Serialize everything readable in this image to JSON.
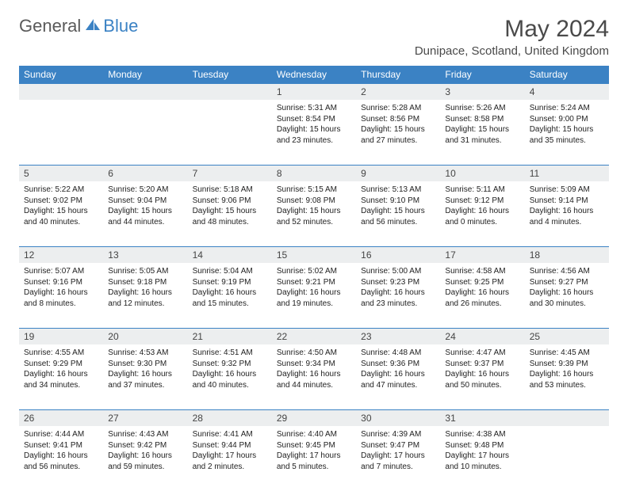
{
  "brand": {
    "part1": "General",
    "part2": "Blue"
  },
  "title": "May 2024",
  "location": "Dunipace, Scotland, United Kingdom",
  "colors": {
    "accent": "#3b82c4",
    "headerText": "#ffffff",
    "dayNumBg": "#eceeef",
    "bodyText": "#222222",
    "titleText": "#4a4a4a"
  },
  "dayNames": [
    "Sunday",
    "Monday",
    "Tuesday",
    "Wednesday",
    "Thursday",
    "Friday",
    "Saturday"
  ],
  "weeks": [
    [
      {
        "num": "",
        "sunrise": "",
        "sunset": "",
        "daylight": ""
      },
      {
        "num": "",
        "sunrise": "",
        "sunset": "",
        "daylight": ""
      },
      {
        "num": "",
        "sunrise": "",
        "sunset": "",
        "daylight": ""
      },
      {
        "num": "1",
        "sunrise": "Sunrise: 5:31 AM",
        "sunset": "Sunset: 8:54 PM",
        "daylight": "Daylight: 15 hours and 23 minutes."
      },
      {
        "num": "2",
        "sunrise": "Sunrise: 5:28 AM",
        "sunset": "Sunset: 8:56 PM",
        "daylight": "Daylight: 15 hours and 27 minutes."
      },
      {
        "num": "3",
        "sunrise": "Sunrise: 5:26 AM",
        "sunset": "Sunset: 8:58 PM",
        "daylight": "Daylight: 15 hours and 31 minutes."
      },
      {
        "num": "4",
        "sunrise": "Sunrise: 5:24 AM",
        "sunset": "Sunset: 9:00 PM",
        "daylight": "Daylight: 15 hours and 35 minutes."
      }
    ],
    [
      {
        "num": "5",
        "sunrise": "Sunrise: 5:22 AM",
        "sunset": "Sunset: 9:02 PM",
        "daylight": "Daylight: 15 hours and 40 minutes."
      },
      {
        "num": "6",
        "sunrise": "Sunrise: 5:20 AM",
        "sunset": "Sunset: 9:04 PM",
        "daylight": "Daylight: 15 hours and 44 minutes."
      },
      {
        "num": "7",
        "sunrise": "Sunrise: 5:18 AM",
        "sunset": "Sunset: 9:06 PM",
        "daylight": "Daylight: 15 hours and 48 minutes."
      },
      {
        "num": "8",
        "sunrise": "Sunrise: 5:15 AM",
        "sunset": "Sunset: 9:08 PM",
        "daylight": "Daylight: 15 hours and 52 minutes."
      },
      {
        "num": "9",
        "sunrise": "Sunrise: 5:13 AM",
        "sunset": "Sunset: 9:10 PM",
        "daylight": "Daylight: 15 hours and 56 minutes."
      },
      {
        "num": "10",
        "sunrise": "Sunrise: 5:11 AM",
        "sunset": "Sunset: 9:12 PM",
        "daylight": "Daylight: 16 hours and 0 minutes."
      },
      {
        "num": "11",
        "sunrise": "Sunrise: 5:09 AM",
        "sunset": "Sunset: 9:14 PM",
        "daylight": "Daylight: 16 hours and 4 minutes."
      }
    ],
    [
      {
        "num": "12",
        "sunrise": "Sunrise: 5:07 AM",
        "sunset": "Sunset: 9:16 PM",
        "daylight": "Daylight: 16 hours and 8 minutes."
      },
      {
        "num": "13",
        "sunrise": "Sunrise: 5:05 AM",
        "sunset": "Sunset: 9:18 PM",
        "daylight": "Daylight: 16 hours and 12 minutes."
      },
      {
        "num": "14",
        "sunrise": "Sunrise: 5:04 AM",
        "sunset": "Sunset: 9:19 PM",
        "daylight": "Daylight: 16 hours and 15 minutes."
      },
      {
        "num": "15",
        "sunrise": "Sunrise: 5:02 AM",
        "sunset": "Sunset: 9:21 PM",
        "daylight": "Daylight: 16 hours and 19 minutes."
      },
      {
        "num": "16",
        "sunrise": "Sunrise: 5:00 AM",
        "sunset": "Sunset: 9:23 PM",
        "daylight": "Daylight: 16 hours and 23 minutes."
      },
      {
        "num": "17",
        "sunrise": "Sunrise: 4:58 AM",
        "sunset": "Sunset: 9:25 PM",
        "daylight": "Daylight: 16 hours and 26 minutes."
      },
      {
        "num": "18",
        "sunrise": "Sunrise: 4:56 AM",
        "sunset": "Sunset: 9:27 PM",
        "daylight": "Daylight: 16 hours and 30 minutes."
      }
    ],
    [
      {
        "num": "19",
        "sunrise": "Sunrise: 4:55 AM",
        "sunset": "Sunset: 9:29 PM",
        "daylight": "Daylight: 16 hours and 34 minutes."
      },
      {
        "num": "20",
        "sunrise": "Sunrise: 4:53 AM",
        "sunset": "Sunset: 9:30 PM",
        "daylight": "Daylight: 16 hours and 37 minutes."
      },
      {
        "num": "21",
        "sunrise": "Sunrise: 4:51 AM",
        "sunset": "Sunset: 9:32 PM",
        "daylight": "Daylight: 16 hours and 40 minutes."
      },
      {
        "num": "22",
        "sunrise": "Sunrise: 4:50 AM",
        "sunset": "Sunset: 9:34 PM",
        "daylight": "Daylight: 16 hours and 44 minutes."
      },
      {
        "num": "23",
        "sunrise": "Sunrise: 4:48 AM",
        "sunset": "Sunset: 9:36 PM",
        "daylight": "Daylight: 16 hours and 47 minutes."
      },
      {
        "num": "24",
        "sunrise": "Sunrise: 4:47 AM",
        "sunset": "Sunset: 9:37 PM",
        "daylight": "Daylight: 16 hours and 50 minutes."
      },
      {
        "num": "25",
        "sunrise": "Sunrise: 4:45 AM",
        "sunset": "Sunset: 9:39 PM",
        "daylight": "Daylight: 16 hours and 53 minutes."
      }
    ],
    [
      {
        "num": "26",
        "sunrise": "Sunrise: 4:44 AM",
        "sunset": "Sunset: 9:41 PM",
        "daylight": "Daylight: 16 hours and 56 minutes."
      },
      {
        "num": "27",
        "sunrise": "Sunrise: 4:43 AM",
        "sunset": "Sunset: 9:42 PM",
        "daylight": "Daylight: 16 hours and 59 minutes."
      },
      {
        "num": "28",
        "sunrise": "Sunrise: 4:41 AM",
        "sunset": "Sunset: 9:44 PM",
        "daylight": "Daylight: 17 hours and 2 minutes."
      },
      {
        "num": "29",
        "sunrise": "Sunrise: 4:40 AM",
        "sunset": "Sunset: 9:45 PM",
        "daylight": "Daylight: 17 hours and 5 minutes."
      },
      {
        "num": "30",
        "sunrise": "Sunrise: 4:39 AM",
        "sunset": "Sunset: 9:47 PM",
        "daylight": "Daylight: 17 hours and 7 minutes."
      },
      {
        "num": "31",
        "sunrise": "Sunrise: 4:38 AM",
        "sunset": "Sunset: 9:48 PM",
        "daylight": "Daylight: 17 hours and 10 minutes."
      },
      {
        "num": "",
        "sunrise": "",
        "sunset": "",
        "daylight": ""
      }
    ]
  ]
}
